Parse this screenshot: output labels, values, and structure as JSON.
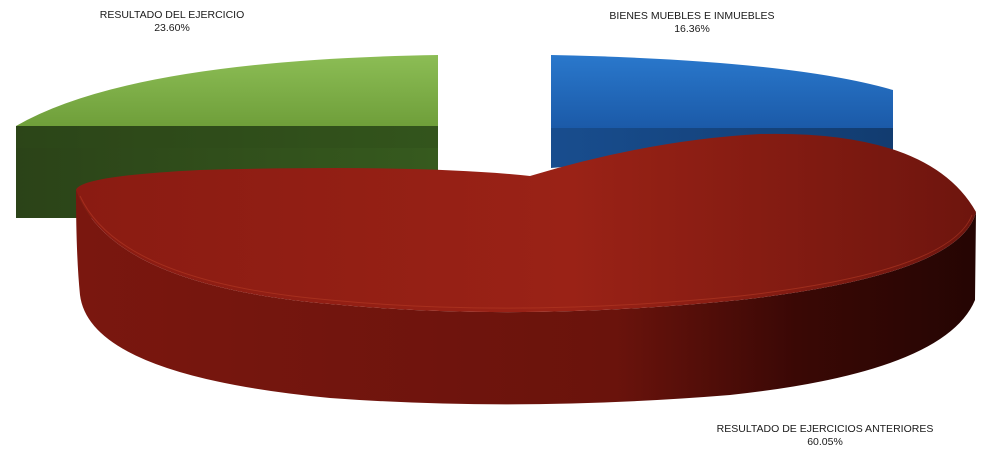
{
  "chart_data": {
    "type": "pie",
    "style": "3d-exploded",
    "slices": [
      {
        "label": "RESULTADO DE EJERCICIOS ANTERIORES",
        "percent_label": "60.05%",
        "value": 60.05,
        "color": "#8f1c12"
      },
      {
        "label": "RESULTADO DEL EJERCICIO",
        "percent_label": "23.60%",
        "value": 23.6,
        "color": "#76a83e"
      },
      {
        "label": "BIENES MUEBLES E INMUEBLES",
        "percent_label": "16.36%",
        "value": 16.36,
        "color": "#1f63b2"
      }
    ]
  }
}
